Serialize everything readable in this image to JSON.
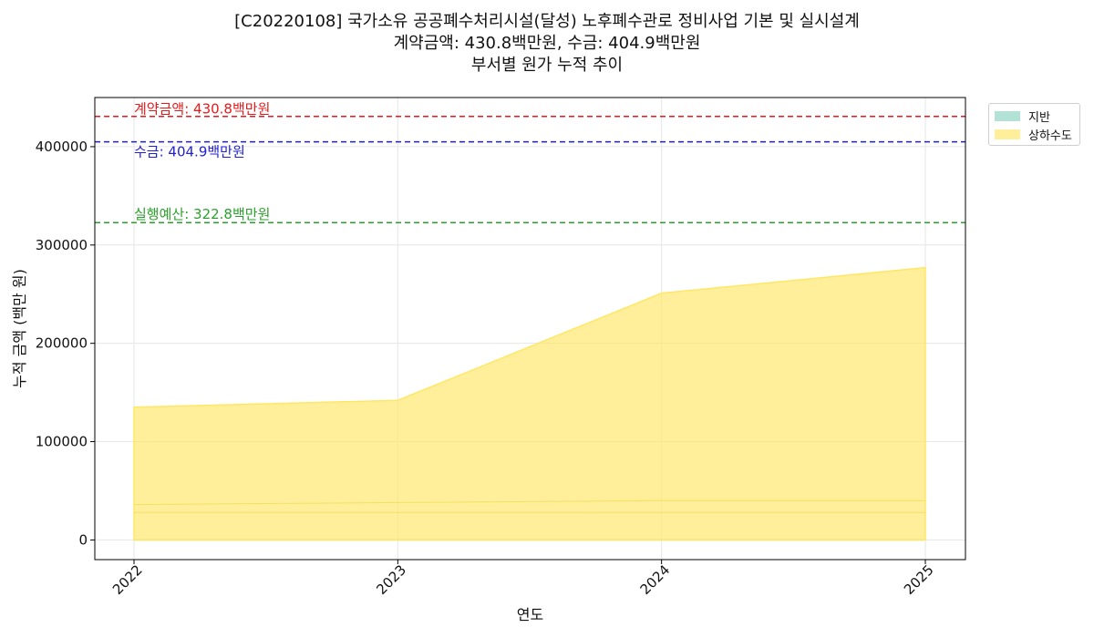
{
  "title": {
    "line1": "[C20220108] 국가소유 공공폐수처리시설(달성) 노후폐수관로 정비사업 기본 및 실시설계",
    "line2": "계약금액: 430.8백만원, 수금: 404.9백만원",
    "line3": "부서별 원가 누적 추이"
  },
  "chart_data": {
    "type": "area",
    "stacked": true,
    "x": [
      "2022",
      "2023",
      "2024",
      "2025"
    ],
    "xlabel": "연도",
    "ylabel": "누적 금액 (백만 원)",
    "ylim": [
      -20000,
      450000
    ],
    "yticks": [
      0,
      100000,
      200000,
      300000,
      400000
    ],
    "grid": true,
    "legend_position": "outside-right-top",
    "series": [
      {
        "name": "지반",
        "color": "#7fcdbb",
        "values": [
          0,
          0,
          0,
          0
        ]
      },
      {
        "name": "상하수도",
        "color": "#ffe766",
        "values": [
          135000,
          142000,
          251000,
          277000
        ]
      }
    ],
    "reference_lines": [
      {
        "label": "계약금액: 430.8백만원",
        "value": 430800,
        "color": "#e41a1c"
      },
      {
        "label": "수금: 404.9백만원",
        "value": 404900,
        "color": "#1f1fd6"
      },
      {
        "label": "실행예산: 322.8백만원",
        "value": 322800,
        "color": "#2ca02c"
      }
    ],
    "faint_lines": [
      {
        "values": [
          36000,
          38000,
          40000,
          40000
        ]
      },
      {
        "values": [
          28000,
          28000,
          28000,
          28000
        ]
      }
    ]
  }
}
